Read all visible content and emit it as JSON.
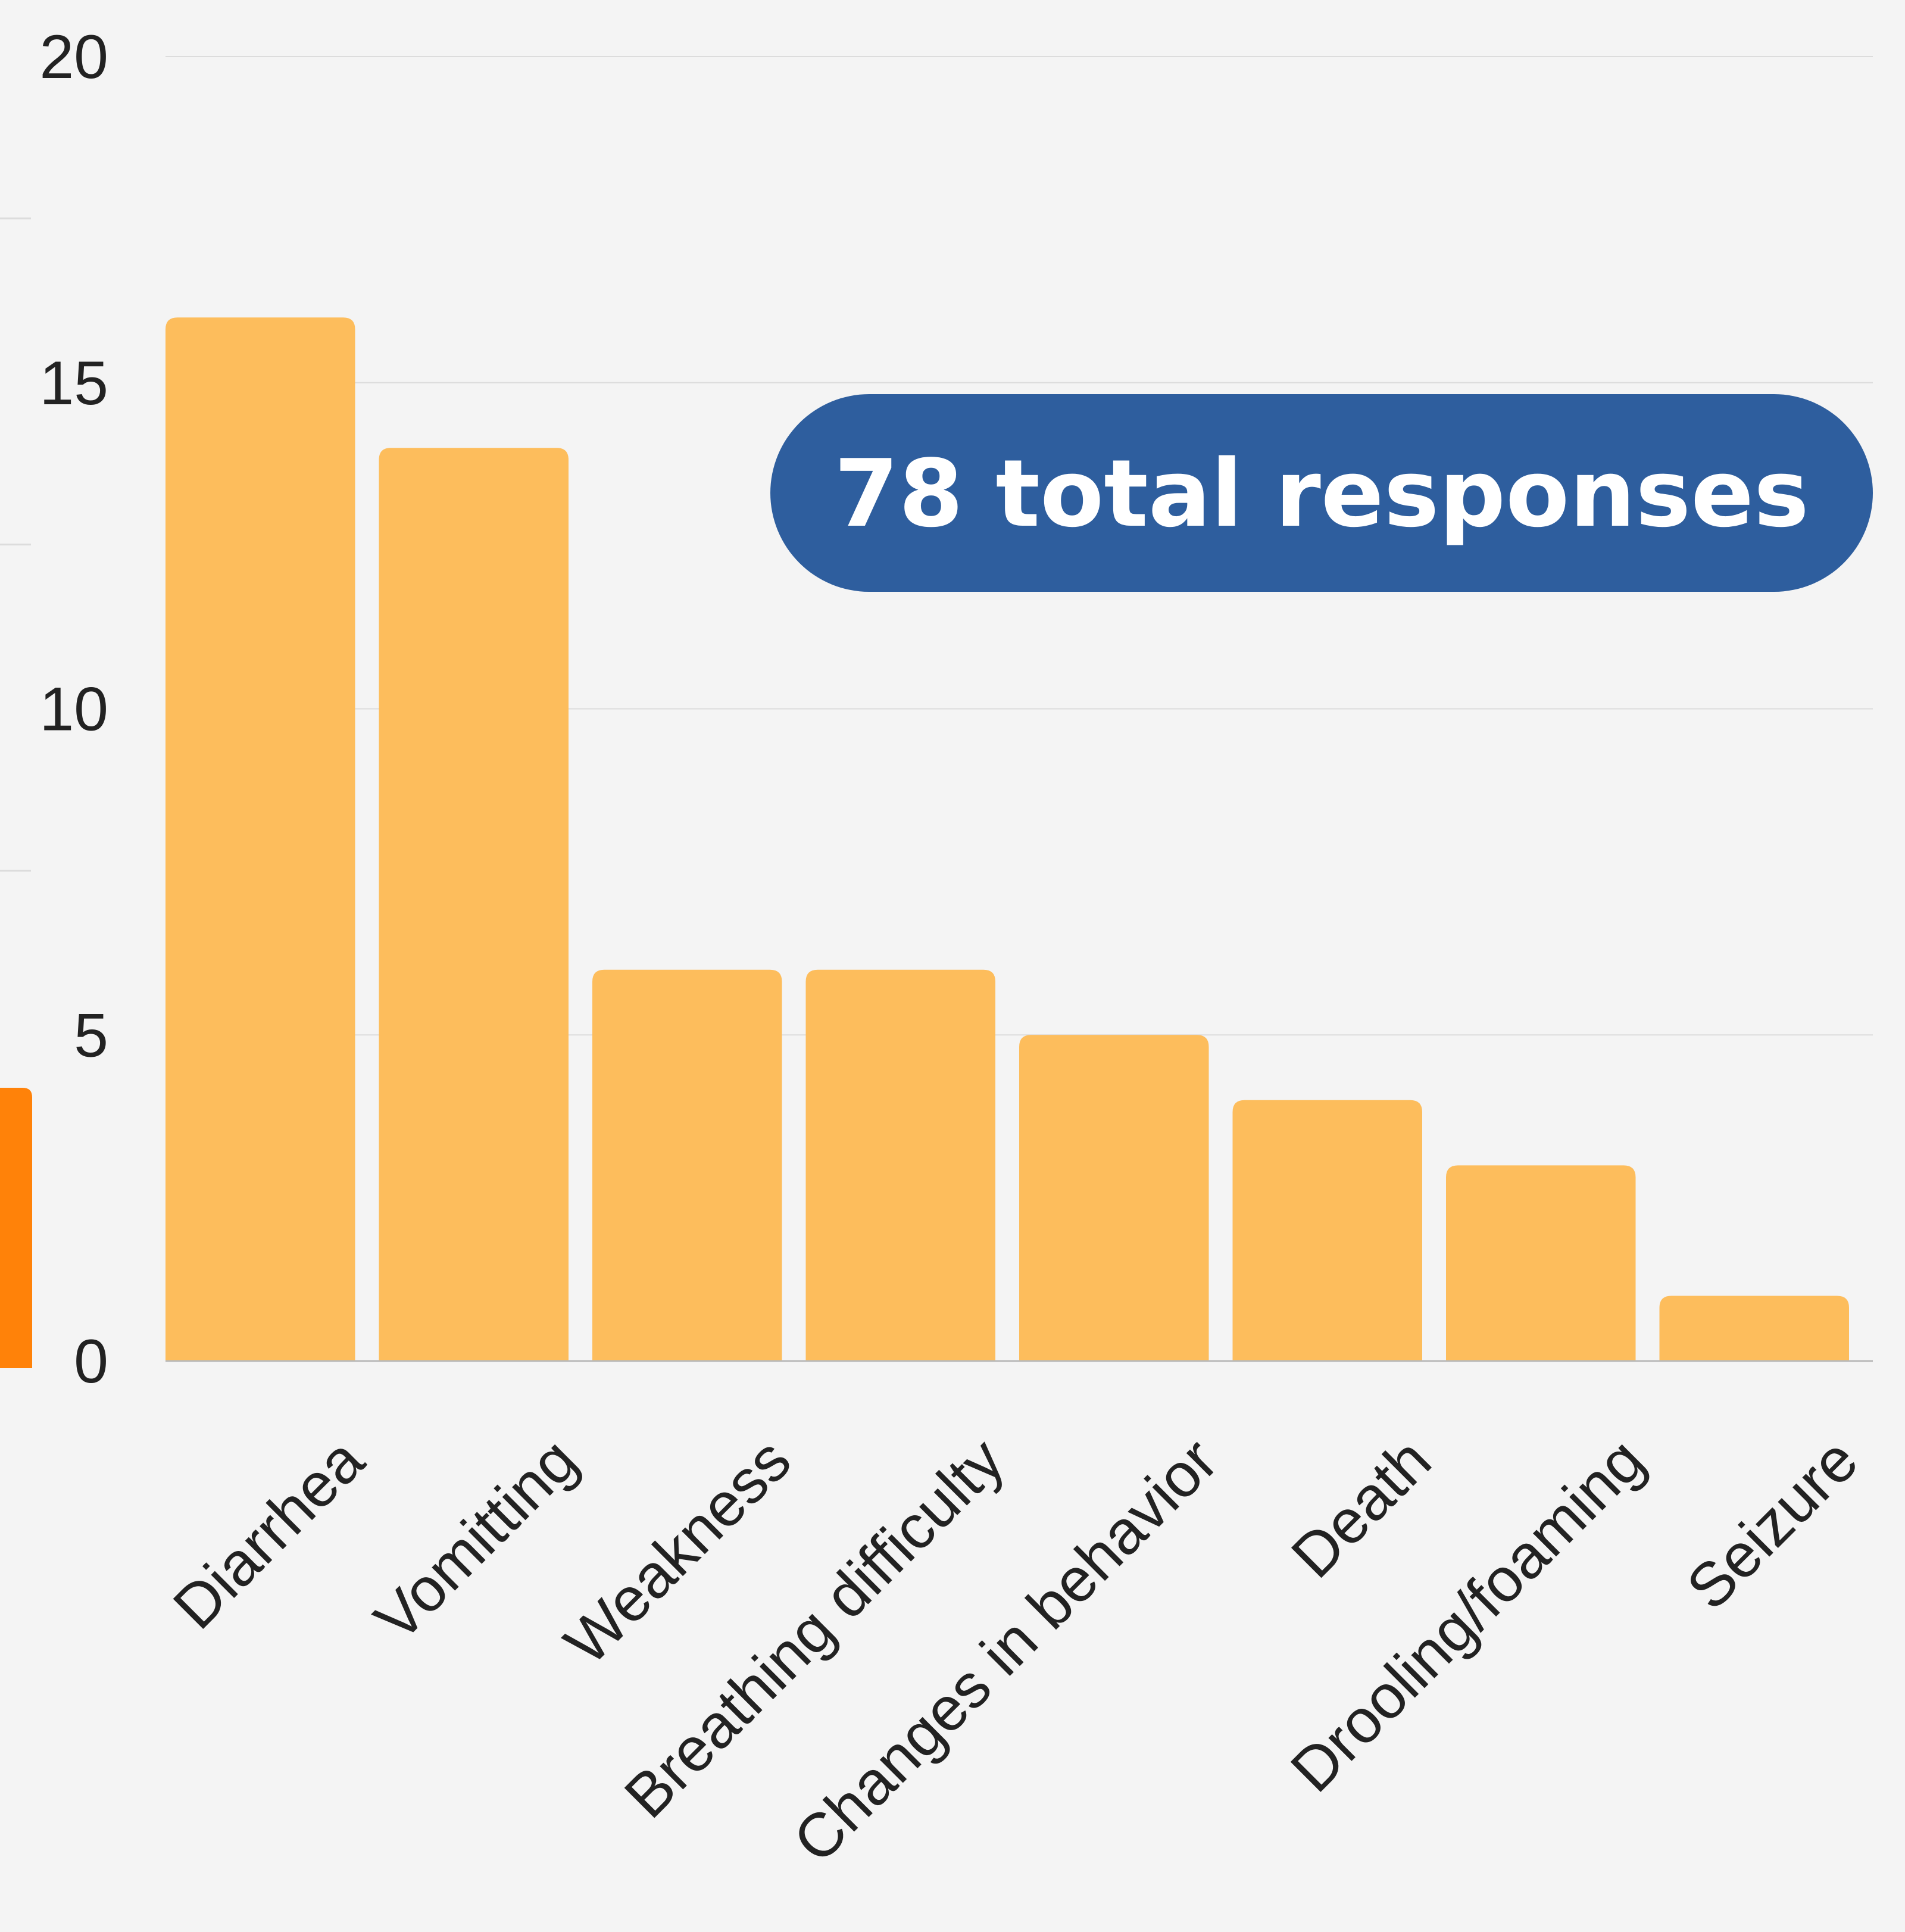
{
  "chart_data": {
    "type": "bar",
    "categories": [
      "Diarrhea",
      "Vomitting",
      "Weakness",
      "Breathing difficulty",
      "Changes in behavior",
      "Death",
      "Drooling/foaming",
      "Seizure"
    ],
    "values": [
      16,
      14,
      6,
      6,
      5,
      4,
      3,
      1
    ],
    "y_ticks": [
      "0",
      "5",
      "10",
      "15",
      "20"
    ],
    "ylim": [
      0,
      20
    ],
    "grid": true,
    "annotation": "78 total responses",
    "colors": {
      "bar": "#fdbd5c",
      "badge": "#2e5e9e",
      "side_accent": "#ff8209",
      "grid": "#dcdcdc",
      "axis": "#b9b9b9",
      "background": "#f4f4f4"
    }
  }
}
